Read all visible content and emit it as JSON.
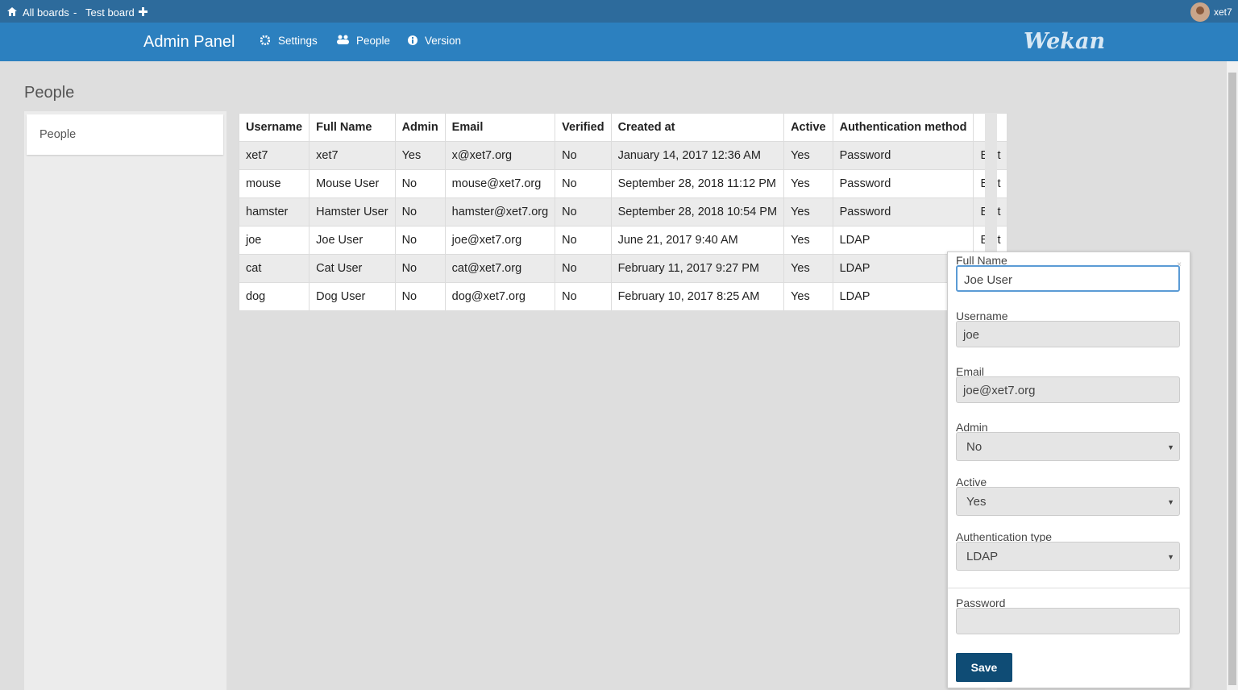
{
  "topbar": {
    "links": [
      "All boards",
      "Test board"
    ],
    "separator": "-",
    "user": "xet7"
  },
  "header": {
    "title": "Admin Panel",
    "nav": [
      "Settings",
      "People",
      "Version"
    ],
    "logo": "Wekan"
  },
  "page": {
    "title": "People",
    "sidebar": [
      "People"
    ]
  },
  "table": {
    "columns": [
      "Username",
      "Full Name",
      "Admin",
      "Email",
      "Verified",
      "Created at",
      "Active",
      "Authentication method"
    ],
    "rows": [
      [
        "xet7",
        "xet7",
        "Yes",
        "x@xet7.org",
        "No",
        "January 14, 2017 12:36 AM",
        "Yes",
        "Password",
        "Edit"
      ],
      [
        "mouse",
        "Mouse User",
        "No",
        "mouse@xet7.org",
        "No",
        "September 28, 2018 11:12 PM",
        "Yes",
        "Password",
        "Edit"
      ],
      [
        "hamster",
        "Hamster User",
        "No",
        "hamster@xet7.org",
        "No",
        "September 28, 2018 10:54 PM",
        "Yes",
        "Password",
        "Edit"
      ],
      [
        "joe",
        "Joe User",
        "No",
        "joe@xet7.org",
        "No",
        "June 21, 2017 9:40 AM",
        "Yes",
        "LDAP",
        "Edit"
      ],
      [
        "cat",
        "Cat User",
        "No",
        "cat@xet7.org",
        "No",
        "February 11, 2017 9:27 PM",
        "Yes",
        "LDAP"
      ],
      [
        "dog",
        "Dog User",
        "No",
        "dog@xet7.org",
        "No",
        "February 10, 2017 8:25 AM",
        "Yes",
        "LDAP"
      ]
    ]
  },
  "form": {
    "fields": [
      {
        "label": "Full Name",
        "value": "Joe User",
        "kind": "focused"
      },
      {
        "label": "Username",
        "value": "joe",
        "kind": "input"
      },
      {
        "label": "Email",
        "value": "joe@xet7.org",
        "kind": "input"
      },
      {
        "label": "Admin",
        "value": "No",
        "kind": "select"
      },
      {
        "label": "Active",
        "value": "Yes",
        "kind": "select"
      },
      {
        "label": "Authentication type",
        "value": "LDAP",
        "kind": "select"
      },
      {
        "label": "Password",
        "kind": "input"
      }
    ],
    "button": "Save"
  }
}
